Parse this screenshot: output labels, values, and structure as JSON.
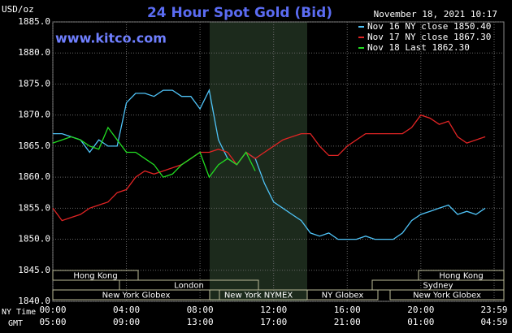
{
  "chart_data": {
    "type": "line",
    "title": "24 Hour Spot Gold (Bid)",
    "y_label": "USD/oz",
    "timestamp": "November 18, 2021 10:17",
    "watermark": "www.kitco.com",
    "x_label": "NY Time",
    "x2_label": "GMT",
    "x": [
      0,
      0.5,
      1,
      1.5,
      2,
      2.5,
      3,
      3.5,
      4,
      4.5,
      5,
      5.5,
      6,
      6.5,
      7,
      7.5,
      8,
      8.5,
      9,
      9.5,
      10,
      10.5,
      11,
      11.5,
      12,
      12.5,
      13,
      13.5,
      14,
      14.5,
      15,
      15.5,
      16,
      16.5,
      17,
      17.5,
      18,
      18.5,
      19,
      19.5,
      20,
      20.5,
      21,
      21.5,
      22,
      22.5,
      23,
      23.5
    ],
    "series": [
      {
        "name": "Nov 16 NY close 1850.40",
        "color": "#4fc3f7",
        "values": [
          1867,
          1867,
          1866.5,
          1866,
          1864,
          1866,
          1865,
          1865,
          1872,
          1873.5,
          1873.5,
          1873,
          1874,
          1874,
          1873,
          1873,
          1871,
          1874,
          1866,
          1863,
          1862,
          1864,
          1863,
          1859,
          1856,
          1855,
          1854,
          1853,
          1851,
          1850.5,
          1851,
          1850,
          1850,
          1850,
          1850.5,
          1850,
          1850,
          1850,
          1851,
          1853,
          1854,
          1854.5,
          1855,
          1855.5,
          1854,
          1854.5,
          1854,
          1855
        ]
      },
      {
        "name": "Nov 17 NY close 1867.30",
        "color": "#e02424",
        "values": [
          1855,
          1853,
          1853.5,
          1854,
          1855,
          1855.5,
          1856,
          1857.5,
          1858,
          1860,
          1861,
          1860.5,
          1861,
          1861.5,
          1862,
          1863,
          1864,
          1864,
          1864.5,
          1864,
          1862,
          1864,
          1863,
          1864,
          1865,
          1866,
          1866.5,
          1867,
          1867,
          1865,
          1863.5,
          1863.5,
          1865,
          1866,
          1867,
          1867,
          1867,
          1867,
          1867,
          1868,
          1870,
          1869.5,
          1868.5,
          1869,
          1866.5,
          1865.5,
          1866,
          1866.5
        ]
      },
      {
        "name": "Nov 18 Last 1862.30",
        "color": "#22dd22",
        "values": [
          1865.5,
          1866,
          1866.5,
          1866,
          1865,
          1864.5,
          1868,
          1866,
          1864,
          1864,
          1863,
          1862,
          1860,
          1860.5,
          1862,
          1863,
          1864,
          1860,
          1862,
          1863,
          1862,
          1864,
          1861,
          null,
          null,
          null,
          null,
          null,
          null,
          null,
          null,
          null,
          null,
          null,
          null,
          null,
          null,
          null,
          null,
          null,
          null,
          null,
          null,
          null,
          null,
          null,
          null,
          null
        ]
      }
    ],
    "xlim": [
      0,
      23.983
    ],
    "xticks": [
      {
        "value": 0,
        "label": "00:00"
      },
      {
        "value": 4,
        "label": "04:00"
      },
      {
        "value": 8,
        "label": "08:00"
      },
      {
        "value": 12,
        "label": "12:00"
      },
      {
        "value": 16,
        "label": "16:00"
      },
      {
        "value": 20,
        "label": "20:00"
      },
      {
        "value": 23.983,
        "label": "23:59"
      }
    ],
    "x2ticks": [
      "05:00",
      "09:00",
      "13:00",
      "17:00",
      "21:00",
      "01:00",
      "04:59"
    ],
    "ylim": [
      1840,
      1885
    ],
    "yticks": [
      {
        "value": 1840,
        "label": "1840.0"
      },
      {
        "value": 1845,
        "label": "1845.0"
      },
      {
        "value": 1850,
        "label": "1850.0"
      },
      {
        "value": 1855,
        "label": "1855.0"
      },
      {
        "value": 1860,
        "label": "1860.0"
      },
      {
        "value": 1865,
        "label": "1865.0"
      },
      {
        "value": 1870,
        "label": "1870.0"
      },
      {
        "value": 1875,
        "label": "1875.0"
      },
      {
        "value": 1880,
        "label": "1880.0"
      },
      {
        "value": 1885,
        "label": "1885.0"
      }
    ],
    "grid": true,
    "legend": "top-right",
    "sessions": [
      "Hong Kong",
      "Hong Kong",
      "London",
      "Sydney",
      "New York Globex",
      "New York NYMEX",
      "NY Globex",
      "New York Globex"
    ]
  }
}
